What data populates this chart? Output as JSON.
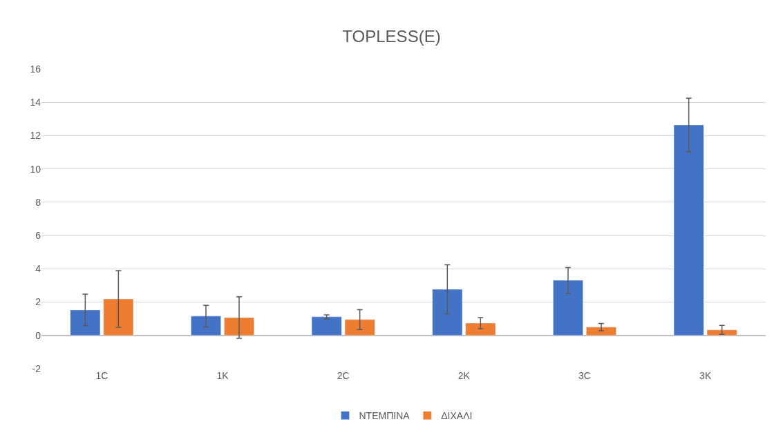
{
  "chart_data": {
    "type": "bar",
    "title": "TOPLESS(E)",
    "categories": [
      "1C",
      "1K",
      "2C",
      "2K",
      "3C",
      "3K"
    ],
    "series": [
      {
        "name": "ΝΤΕΜΠΙΝΑ",
        "color": "#4472c4",
        "values": [
          1.53,
          1.16,
          1.12,
          2.77,
          3.31,
          12.64
        ],
        "errors": [
          0.95,
          0.65,
          0.12,
          1.47,
          0.77,
          1.61
        ]
      },
      {
        "name": "ΔΙΧΑΛΙ",
        "color": "#ed7d31",
        "values": [
          2.19,
          1.07,
          0.95,
          0.74,
          0.5,
          0.33
        ],
        "errors": [
          1.7,
          1.25,
          0.6,
          0.33,
          0.22,
          0.27
        ]
      }
    ],
    "ylim": [
      -2,
      16
    ],
    "yticks": [
      -2,
      0,
      2,
      4,
      6,
      8,
      10,
      12,
      14,
      16
    ],
    "grid": "y",
    "legend": "bottom"
  }
}
